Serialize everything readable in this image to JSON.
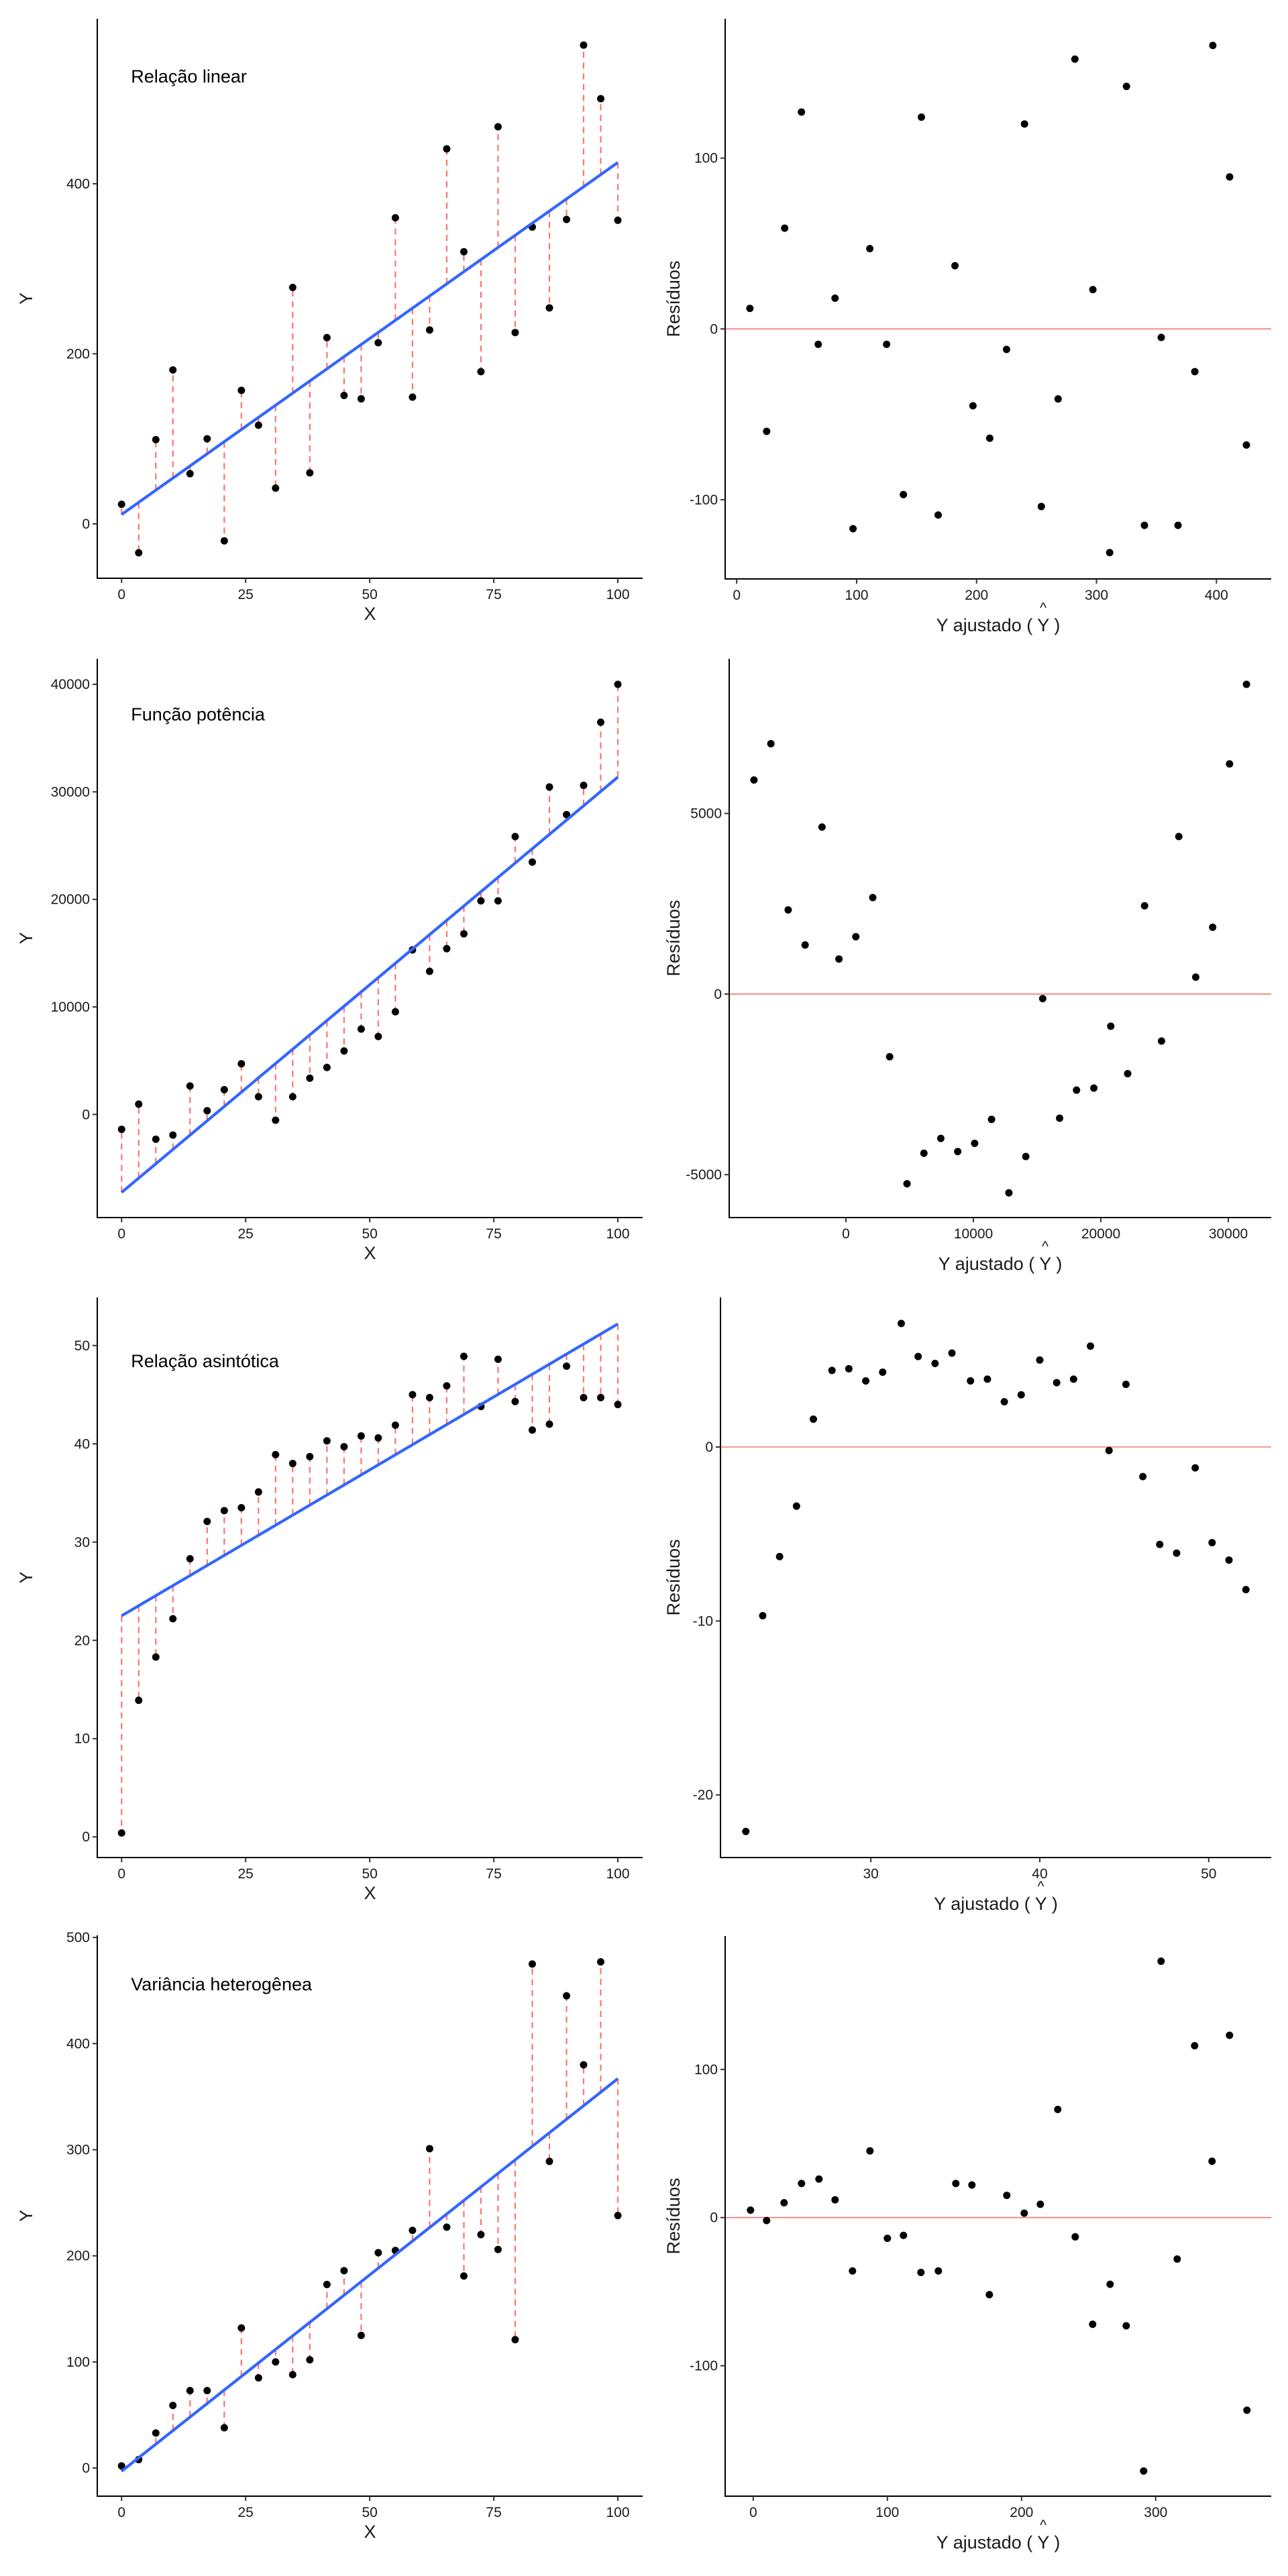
{
  "chart_data": [
    {
      "type": "scatter",
      "panel": "fit",
      "title": "Relação linear",
      "xlabel": "X",
      "ylabel": "Y",
      "xlim": [
        -4.9,
        105.0
      ],
      "ylim": [
        -64,
        594
      ],
      "xticks": [
        0,
        25,
        50,
        75,
        100
      ],
      "yticks": [
        0,
        200,
        400
      ],
      "grid": false,
      "fit_line": {
        "x": [
          0,
          100
        ],
        "y": [
          11,
          425
        ],
        "color": "#3366ff"
      },
      "residual_segments_color": "#f8766d",
      "point_color": "#000000",
      "x": [
        0,
        3.45,
        6.9,
        10.34,
        13.79,
        17.24,
        20.69,
        24.14,
        27.59,
        31.03,
        34.48,
        37.93,
        41.38,
        44.83,
        48.28,
        51.72,
        55.17,
        58.62,
        62.07,
        65.52,
        68.97,
        72.41,
        75.86,
        79.31,
        82.76,
        86.21,
        89.66,
        93.1,
        96.55,
        100
      ],
      "y": [
        23,
        -34,
        99,
        181,
        59,
        100,
        -20,
        157,
        116,
        42,
        278,
        60,
        219,
        151,
        147,
        213,
        360,
        149,
        228,
        441,
        320,
        179,
        467,
        225,
        349,
        254,
        358,
        563,
        500,
        357
      ]
    },
    {
      "type": "scatter",
      "panel": "residuals",
      "title": "",
      "xlabel": "Y ajustado ( Ŷ )",
      "xlabel_parts": [
        "Y ajustado ( ",
        "Y",
        " )"
      ],
      "ylabel": "Resíduos",
      "xlim": [
        -9.6,
        445.7
      ],
      "ylim": [
        -146.4,
        181.6
      ],
      "xticks": [
        0,
        100,
        200,
        300,
        400
      ],
      "yticks": [
        -100,
        0,
        100
      ],
      "grid": false,
      "hline": {
        "y": 0,
        "color": "#f8766d"
      },
      "point_color": "#000000",
      "x": [
        11,
        25,
        40,
        54,
        68,
        82,
        97,
        111,
        125,
        139,
        154,
        168,
        182,
        197,
        211,
        225,
        240,
        254,
        268,
        282,
        297,
        311,
        325,
        340,
        354,
        368,
        382,
        397,
        411,
        425
      ],
      "y": [
        12,
        -60,
        59,
        127,
        -9,
        18,
        -117,
        47,
        -9,
        -97,
        124,
        -109,
        37,
        -45,
        -64,
        -12,
        120,
        -104,
        -41,
        158,
        23,
        -131,
        142,
        -115,
        -5,
        -115,
        -25,
        166,
        89,
        -68
      ]
    },
    {
      "type": "scatter",
      "panel": "fit",
      "title": "Função potência",
      "xlabel": "X",
      "ylabel": "Y",
      "xlim": [
        -4.9,
        105.0
      ],
      "ylim": [
        -9588,
        42378
      ],
      "xticks": [
        0,
        25,
        50,
        75,
        100
      ],
      "yticks": [
        0,
        10000,
        20000,
        30000,
        40000
      ],
      "grid": false,
      "fit_line": {
        "x": [
          0,
          100
        ],
        "y": [
          -7248,
          31371
        ],
        "color": "#3366ff"
      },
      "residual_segments_color": "#f8766d",
      "point_color": "#000000",
      "x": [
        0,
        3.45,
        6.9,
        10.34,
        13.79,
        17.24,
        20.69,
        24.14,
        27.59,
        31.03,
        34.48,
        37.93,
        41.38,
        44.83,
        48.28,
        51.72,
        55.17,
        58.62,
        62.07,
        65.52,
        68.97,
        72.41,
        75.86,
        79.31,
        82.76,
        86.21,
        89.66,
        93.1,
        96.55,
        100
      ],
      "y": [
        -1381,
        959,
        -2301,
        -1918,
        2646,
        345,
        2301,
        4717,
        1649,
        -537,
        1649,
        3375,
        4372,
        5906,
        7939,
        7248,
        9549,
        15302,
        13307,
        15417,
        16797,
        19866,
        19866,
        25849,
        23471,
        30451,
        27881,
        30604,
        36472,
        40000
      ]
    },
    {
      "type": "scatter",
      "panel": "residuals",
      "title": "",
      "xlabel": "Y ajustado ( Ŷ )",
      "xlabel_parts": [
        "Y ajustado ( ",
        "Y",
        " )"
      ],
      "ylabel": "Resíduos",
      "xlim": [
        -9159,
        33366
      ],
      "ylim": [
        -6187,
        9281
      ],
      "xticks": [
        0,
        10000,
        20000,
        30000
      ],
      "yticks": [
        -5000,
        0,
        5000
      ],
      "grid": false,
      "hline": {
        "y": 0,
        "color": "#f8766d"
      },
      "point_color": "#000000",
      "x": [
        -7217,
        -5890,
        -4531,
        -3204,
        -1877,
        -550,
        777,
        2104,
        3430,
        4790,
        6117,
        7443,
        8770,
        10097,
        11424,
        12783,
        14110,
        15437,
        16764,
        18091,
        19450,
        20777,
        22104,
        23430,
        24757,
        26117,
        27443,
        28770,
        30097,
        31424
      ],
      "y": [
        5925,
        6929,
        2329,
        1358,
        4623,
        970,
        1587,
        2671,
        -1735,
        -5251,
        -4406,
        -3995,
        -4361,
        -4132,
        -3470,
        -5502,
        -4498,
        -126,
        -3436,
        -2660,
        -2603,
        -890,
        -2203,
        2443,
        -1301,
        4361,
        468,
        1849,
        6370,
        8573
      ]
    },
    {
      "type": "scatter",
      "panel": "fit",
      "title": "Relação asintótica",
      "xlabel": "X",
      "ylabel": "Y",
      "xlim": [
        -4.9,
        105.0
      ],
      "ylim": [
        -2.1,
        54.9
      ],
      "xticks": [
        0,
        25,
        50,
        75,
        100
      ],
      "yticks": [
        0,
        10,
        20,
        30,
        40,
        50
      ],
      "grid": false,
      "fit_line": {
        "x": [
          0,
          100
        ],
        "y": [
          22.5,
          52.2
        ],
        "color": "#3366ff"
      },
      "residual_segments_color": "#f8766d",
      "point_color": "#000000",
      "x": [
        0,
        3.45,
        6.9,
        10.34,
        13.79,
        17.24,
        20.69,
        24.14,
        27.59,
        31.03,
        34.48,
        37.93,
        41.38,
        44.83,
        48.28,
        51.72,
        55.17,
        58.62,
        62.07,
        65.52,
        68.97,
        72.41,
        75.86,
        79.31,
        82.76,
        86.21,
        89.66,
        93.1,
        96.55,
        100
      ],
      "y": [
        0.4,
        13.9,
        18.3,
        22.2,
        28.3,
        32.1,
        33.2,
        33.5,
        35.1,
        38.9,
        38.0,
        38.7,
        40.3,
        39.7,
        40.8,
        40.6,
        41.9,
        45.0,
        44.7,
        45.9,
        48.9,
        43.8,
        48.6,
        44.3,
        41.4,
        42.0,
        47.9,
        44.7,
        44.7,
        44.0
      ]
    },
    {
      "type": "scatter",
      "panel": "residuals",
      "title": "",
      "xlabel": "Y ajustado ( Ŷ )",
      "xlabel_parts": [
        "Y ajustado ( ",
        "Y",
        " )"
      ],
      "ylabel": "Resíduos",
      "xlim": [
        21.1,
        53.7
      ],
      "ylim": [
        -23.6,
        8.6
      ],
      "xticks": [
        30,
        40,
        50
      ],
      "yticks": [
        -20,
        -10,
        0
      ],
      "grid": false,
      "hline": {
        "y": 0,
        "color": "#f8766d"
      },
      "point_color": "#000000",
      "x": [
        22.6,
        23.6,
        24.6,
        25.6,
        26.6,
        27.7,
        28.7,
        29.7,
        30.7,
        31.8,
        32.8,
        33.8,
        34.8,
        35.9,
        36.9,
        37.9,
        38.9,
        40.0,
        41.0,
        42.0,
        43.0,
        44.1,
        45.1,
        46.1,
        47.1,
        48.1,
        49.2,
        50.2,
        51.2,
        52.2
      ],
      "y": [
        -22.1,
        -9.7,
        -6.3,
        -3.4,
        1.6,
        4.4,
        4.5,
        3.8,
        4.3,
        7.1,
        5.2,
        4.8,
        5.4,
        3.8,
        3.9,
        2.6,
        3.0,
        5.0,
        3.7,
        3.9,
        5.8,
        -0.2,
        3.6,
        -1.7,
        -5.6,
        -6.1,
        -1.2,
        -5.5,
        -6.5,
        -8.2
      ]
    },
    {
      "type": "scatter",
      "panel": "fit",
      "title": "Variância heterogênea",
      "xlabel": "X",
      "ylabel": "Y",
      "xlim": [
        -4.9,
        105.0
      ],
      "ylim": [
        -26.5,
        502
      ],
      "xticks": [
        0,
        25,
        50,
        75,
        100
      ],
      "yticks": [
        0,
        100,
        200,
        300,
        400,
        500
      ],
      "grid": false,
      "fit_line": {
        "x": [
          0,
          100
        ],
        "y": [
          -3,
          367
        ],
        "color": "#3366ff"
      },
      "residual_segments_color": "#f8766d",
      "point_color": "#000000",
      "x": [
        0,
        3.45,
        6.9,
        10.34,
        13.79,
        17.24,
        20.69,
        24.14,
        27.59,
        31.03,
        34.48,
        37.93,
        41.38,
        44.83,
        48.28,
        51.72,
        55.17,
        58.62,
        62.07,
        65.52,
        68.97,
        72.41,
        75.86,
        79.31,
        82.76,
        86.21,
        89.66,
        93.1,
        96.55,
        100
      ],
      "y": [
        2,
        8,
        33,
        59,
        73,
        73,
        38,
        132,
        85,
        100,
        88,
        102,
        173,
        186,
        125,
        203,
        205,
        224,
        301,
        227,
        181,
        220,
        206,
        121,
        475,
        289,
        445,
        380,
        477,
        238
      ]
    },
    {
      "type": "scatter",
      "panel": "residuals",
      "title": "",
      "xlabel": "Y ajustado ( Ŷ )",
      "xlabel_parts": [
        "Y ajustado ( ",
        "Y",
        " )"
      ],
      "ylabel": "Resíduos",
      "xlim": [
        -20.9,
        386.1
      ],
      "ylim": [
        -188,
        190
      ],
      "xticks": [
        0,
        100,
        200,
        300
      ],
      "yticks": [
        -100,
        0,
        100
      ],
      "grid": false,
      "hline": {
        "y": 0,
        "color": "#f8766d"
      },
      "point_color": "#000000",
      "x": [
        -2,
        10,
        23,
        36,
        49,
        61,
        74,
        87,
        100,
        112,
        125,
        138,
        151,
        163,
        176,
        189,
        202,
        214,
        227,
        240,
        253,
        266,
        278,
        291,
        304,
        316,
        329,
        342,
        355,
        368
      ],
      "y": [
        5,
        -2,
        10,
        23,
        26,
        12,
        -36,
        45,
        -14,
        -12,
        -37,
        -36,
        23,
        22,
        -52,
        15,
        3,
        9,
        73,
        -13,
        -72,
        -45,
        -73,
        -171,
        173,
        -28,
        116,
        38,
        123,
        -130
      ]
    }
  ]
}
